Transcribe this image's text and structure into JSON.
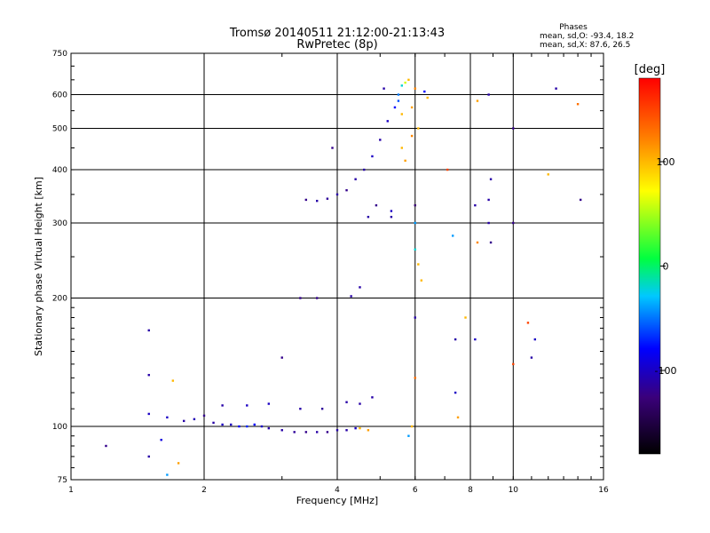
{
  "chart_data": {
    "type": "scatter",
    "title": "Tromsø 20140511 21:12:00-21:13:43",
    "subtitle": "RwPretec (8p)",
    "stats": {
      "heading": "Phases",
      "line1": "mean, sd,O: -93.4, 18.2",
      "line2": "mean, sd,X:  87.6, 26.5"
    },
    "xlabel": "Frequency [MHz]",
    "ylabel": "Stationary phase Virtual Height [km]",
    "x_scale": "log",
    "y_scale": "log",
    "xlim": [
      1,
      16
    ],
    "ylim": [
      75,
      750
    ],
    "x_ticks": [
      1,
      2,
      4,
      6,
      8,
      10,
      16
    ],
    "x_tick_labels": [
      "1",
      "2",
      "4",
      "6",
      "8",
      "10",
      "16"
    ],
    "y_ticks": [
      75,
      100,
      200,
      300,
      400,
      500,
      600,
      750
    ],
    "y_tick_labels": [
      "75",
      "100",
      "200",
      "300",
      "400",
      "500",
      "600",
      "750"
    ],
    "grid": true,
    "colorbar": {
      "label": "[deg]",
      "range": [
        -180,
        180
      ],
      "ticks": [
        100,
        0,
        -100
      ],
      "tick_labels": [
        "100",
        "0",
        "-100"
      ]
    },
    "points": [
      [
        1.2,
        90,
        -120
      ],
      [
        1.5,
        168,
        -110
      ],
      [
        1.5,
        132,
        -110
      ],
      [
        1.5,
        107,
        -100
      ],
      [
        1.5,
        85,
        -110
      ],
      [
        1.6,
        93,
        -90
      ],
      [
        1.65,
        77,
        -40
      ],
      [
        1.7,
        128,
        100
      ],
      [
        1.75,
        82,
        110
      ],
      [
        1.65,
        105,
        -100
      ],
      [
        1.8,
        103,
        -110
      ],
      [
        1.9,
        104,
        -105
      ],
      [
        2.0,
        106,
        -120
      ],
      [
        2.1,
        102,
        -110
      ],
      [
        2.2,
        101,
        -100
      ],
      [
        2.3,
        101,
        -100
      ],
      [
        2.4,
        100,
        -80
      ],
      [
        2.5,
        100,
        -70
      ],
      [
        2.6,
        101,
        -80
      ],
      [
        2.7,
        100,
        -100
      ],
      [
        2.8,
        99,
        -110
      ],
      [
        3.0,
        98,
        -110
      ],
      [
        3.2,
        97,
        -115
      ],
      [
        3.4,
        97,
        -120
      ],
      [
        3.6,
        97,
        -110
      ],
      [
        3.8,
        97,
        -120
      ],
      [
        4.0,
        98,
        -110
      ],
      [
        4.2,
        98,
        -110
      ],
      [
        4.4,
        99,
        -100
      ],
      [
        4.5,
        99,
        100
      ],
      [
        4.7,
        98,
        110
      ],
      [
        2.2,
        112,
        -110
      ],
      [
        2.5,
        112,
        -100
      ],
      [
        2.8,
        113,
        -100
      ],
      [
        3.3,
        110,
        -110
      ],
      [
        3.7,
        110,
        -115
      ],
      [
        4.2,
        114,
        -110
      ],
      [
        4.5,
        113,
        -110
      ],
      [
        4.8,
        117,
        -110
      ],
      [
        3.3,
        200,
        -120
      ],
      [
        3.6,
        200,
        -120
      ],
      [
        4.3,
        202,
        -110
      ],
      [
        4.5,
        212,
        -110
      ],
      [
        3.0,
        145,
        -120
      ],
      [
        3.4,
        340,
        -120
      ],
      [
        3.6,
        338,
        -110
      ],
      [
        3.8,
        342,
        -115
      ],
      [
        4.0,
        350,
        -110
      ],
      [
        4.2,
        358,
        -120
      ],
      [
        4.4,
        380,
        -110
      ],
      [
        4.6,
        400,
        -110
      ],
      [
        4.8,
        430,
        -100
      ],
      [
        5.0,
        470,
        -110
      ],
      [
        5.2,
        520,
        -100
      ],
      [
        5.4,
        560,
        -80
      ],
      [
        5.5,
        600,
        -50
      ],
      [
        5.6,
        630,
        -20
      ],
      [
        5.7,
        640,
        60
      ],
      [
        5.8,
        650,
        100
      ],
      [
        5.6,
        450,
        100
      ],
      [
        5.7,
        420,
        110
      ],
      [
        5.5,
        580,
        -60
      ],
      [
        5.6,
        540,
        100
      ],
      [
        5.9,
        560,
        110
      ],
      [
        5.9,
        480,
        120
      ],
      [
        6.0,
        620,
        120
      ],
      [
        6.3,
        610,
        -80
      ],
      [
        6.4,
        590,
        100
      ],
      [
        6.0,
        330,
        -130
      ],
      [
        6.0,
        300,
        -40
      ],
      [
        6.0,
        260,
        -20
      ],
      [
        6.1,
        240,
        100
      ],
      [
        6.2,
        220,
        100
      ],
      [
        6.0,
        180,
        -110
      ],
      [
        6.0,
        130,
        130
      ],
      [
        5.9,
        100,
        100
      ],
      [
        5.8,
        95,
        -40
      ],
      [
        7.3,
        280,
        -40
      ],
      [
        7.4,
        160,
        -110
      ],
      [
        7.4,
        120,
        -100
      ],
      [
        7.5,
        105,
        110
      ],
      [
        7.8,
        180,
        100
      ],
      [
        8.3,
        580,
        110
      ],
      [
        8.2,
        330,
        -110
      ],
      [
        8.3,
        270,
        120
      ],
      [
        8.2,
        160,
        -100
      ],
      [
        8.8,
        600,
        -110
      ],
      [
        8.9,
        380,
        -110
      ],
      [
        8.8,
        340,
        -110
      ],
      [
        8.8,
        300,
        -110
      ],
      [
        8.9,
        270,
        -120
      ],
      [
        10.0,
        500,
        -120
      ],
      [
        10.0,
        300,
        -120
      ],
      [
        10.0,
        140,
        150
      ],
      [
        10.8,
        175,
        150
      ],
      [
        11.0,
        145,
        -110
      ],
      [
        11.2,
        160,
        -100
      ],
      [
        12.0,
        390,
        100
      ],
      [
        12.5,
        620,
        -110
      ],
      [
        14.0,
        570,
        130
      ],
      [
        14.2,
        340,
        -120
      ],
      [
        7.1,
        400,
        150
      ],
      [
        5.1,
        620,
        -110
      ],
      [
        4.9,
        330,
        -120
      ],
      [
        4.7,
        310,
        -110
      ],
      [
        5.3,
        320,
        -100
      ],
      [
        6.1,
        500,
        100
      ],
      [
        5.3,
        310,
        -110
      ],
      [
        3.9,
        450,
        -120
      ]
    ]
  }
}
